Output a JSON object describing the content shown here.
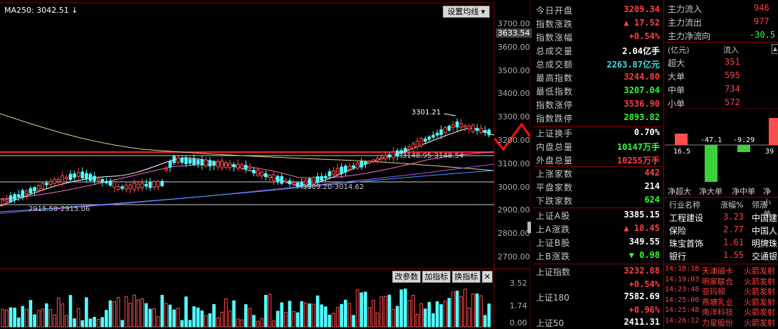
{
  "chart": {
    "ma_label": "MA250: 3042.51 ↓",
    "setting_button": "设置均线 ▾",
    "current_price": "3633.54",
    "price_ticks": [
      "3700.00",
      "3600.00",
      "3500.00",
      "3400.00",
      "3300.00",
      "3200.00",
      "3100.00",
      "3000.00",
      "2900.00",
      "2800.00",
      "2700.00"
    ],
    "annotation_high": "3301.21",
    "annotation_range1": "3148.95-3148.54",
    "annotation_range2": "3009.20-3014.62",
    "annotation_low": "2915.58-2915.06",
    "indicator_buttons": [
      "改参数",
      "加指标",
      "换指标",
      "✕"
    ],
    "volume_ticks": [
      "3.52",
      "1.74",
      "0.00"
    ]
  },
  "quote": {
    "rows": [
      {
        "label": "今日开盘",
        "value": "3209.34",
        "color": "#ff4040"
      },
      {
        "label": "指数涨跌",
        "value": "▲ 17.52",
        "color": "#ff4040"
      },
      {
        "label": "指数涨幅",
        "value": "+0.54%",
        "color": "#ff4040"
      },
      {
        "label": "总成交量",
        "value": "2.04亿手",
        "color": "#ffffff"
      },
      {
        "label": "总成交额",
        "value": "2263.87亿元",
        "color": "#40e0e0"
      },
      {
        "label": "最高指数",
        "value": "3244.80",
        "color": "#ff4040"
      },
      {
        "label": "最低指数",
        "value": "3207.04",
        "color": "#30ff30"
      },
      {
        "label": "指数涨停",
        "value": "3536.90",
        "color": "#ff4040"
      },
      {
        "label": "指数跌停",
        "value": "2893.82",
        "color": "#30ff30"
      },
      {
        "label": "上证换手",
        "value": "0.70%",
        "color": "#ffffff"
      },
      {
        "label": "内盘总量",
        "value": "10147万手",
        "color": "#30ff30"
      },
      {
        "label": "外盘总量",
        "value": "10255万手",
        "color": "#ff4040"
      },
      {
        "label": "上涨家数",
        "value": "442",
        "color": "#ff4040"
      },
      {
        "label": "平盘家数",
        "value": "214",
        "color": "#ffffff"
      },
      {
        "label": "下跌家数",
        "value": "624",
        "color": "#30ff30"
      },
      {
        "label": "上证A股",
        "value": "3385.15",
        "color": "#ffffff"
      },
      {
        "label": "上A涨跌",
        "value": "▲ 18.45",
        "color": "#ff4040"
      },
      {
        "label": "上证B股",
        "value": "349.55",
        "color": "#ffffff"
      },
      {
        "label": "上B涨跌",
        "value": "▼ 0.98",
        "color": "#30ff30"
      }
    ],
    "sh_index": {
      "label": "上证指数",
      "value": "3232.88",
      "pct": "+0.54%"
    },
    "sh180": {
      "label": "上证180",
      "value": "7582.69",
      "pct": "+0.96%"
    },
    "sh50": {
      "label": "上证50",
      "value": "2411.31"
    }
  },
  "flow": {
    "rows": [
      {
        "label": "主力流入",
        "value": "946"
      },
      {
        "label": "主力流出",
        "value": "977"
      },
      {
        "label": "主力净流向",
        "value": "-30.5"
      }
    ],
    "unit_header": "(亿元)",
    "in_header": "流入",
    "sizes": [
      {
        "label": "超大",
        "value": "351"
      },
      {
        "label": "大单",
        "value": "595"
      },
      {
        "label": "中单",
        "value": "734"
      },
      {
        "label": "小单",
        "value": "572"
      }
    ],
    "bars": [
      {
        "label": "净超大",
        "value": "16.5"
      },
      {
        "label": "净大单",
        "value": "-47.1"
      },
      {
        "label": "净中单",
        "value": "-9.29"
      },
      {
        "label": "净小单",
        "value": "39"
      }
    ]
  },
  "industry": {
    "headers": [
      "行业名称",
      "涨幅%",
      "领涨"
    ],
    "rows": [
      {
        "name": "工程建设",
        "pct": "3.23",
        "lead": "中国建"
      },
      {
        "name": "保险",
        "pct": "2.77",
        "lead": "中国人"
      },
      {
        "name": "珠宝首饰",
        "pct": "1.61",
        "lead": "明牌珠"
      },
      {
        "name": "银行",
        "pct": "1.55",
        "lead": "交通银"
      }
    ]
  },
  "ticker": [
    {
      "time": "14:18:18",
      "name": "天津磁卡",
      "event": "火箭发射"
    },
    {
      "time": "14:19:03",
      "name": "明家联合",
      "event": "火箭发射"
    },
    {
      "time": "14:23:48",
      "name": "亚玛顿",
      "event": "火箭发射"
    },
    {
      "time": "14:25:00",
      "name": "燕塘乳业",
      "event": "火箭发射"
    },
    {
      "time": "14:25:48",
      "name": "南洋科技",
      "event": "火箭发射"
    },
    {
      "time": "14:26:12",
      "name": "力星股份",
      "event": "火箭发射"
    }
  ]
}
